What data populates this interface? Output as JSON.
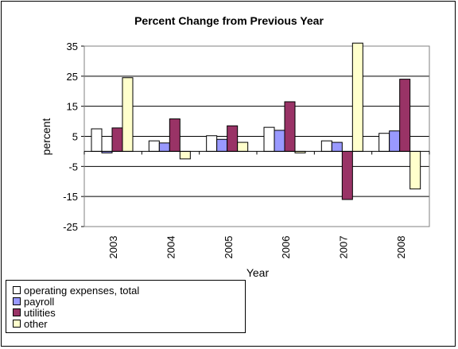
{
  "chart_data": {
    "type": "bar",
    "title": "Percent Change from Previous Year",
    "xlabel": "Year",
    "ylabel": "percent",
    "categories": [
      "2003",
      "2004",
      "2005",
      "2006",
      "2007",
      "2008"
    ],
    "ylim": [
      -25,
      35
    ],
    "yticks": [
      "35",
      "25",
      "15",
      "5",
      "-5",
      "-15",
      "-25"
    ],
    "grid": true,
    "legend_position": "bottom-left",
    "series": [
      {
        "name": "operating expenses, total",
        "color": "#ffffff",
        "values": [
          7.5,
          3.5,
          5.2,
          8.0,
          3.5,
          6.0
        ]
      },
      {
        "name": "payroll",
        "color": "#9999ff",
        "values": [
          -0.5,
          2.8,
          4.0,
          7.0,
          3.0,
          6.8
        ]
      },
      {
        "name": "utilities",
        "color": "#993366",
        "values": [
          7.8,
          10.8,
          8.5,
          16.5,
          -16.0,
          24.0
        ]
      },
      {
        "name": "other",
        "color": "#ffffcc",
        "values": [
          24.5,
          -2.5,
          3.0,
          -0.5,
          36.0,
          -12.5
        ]
      }
    ]
  }
}
